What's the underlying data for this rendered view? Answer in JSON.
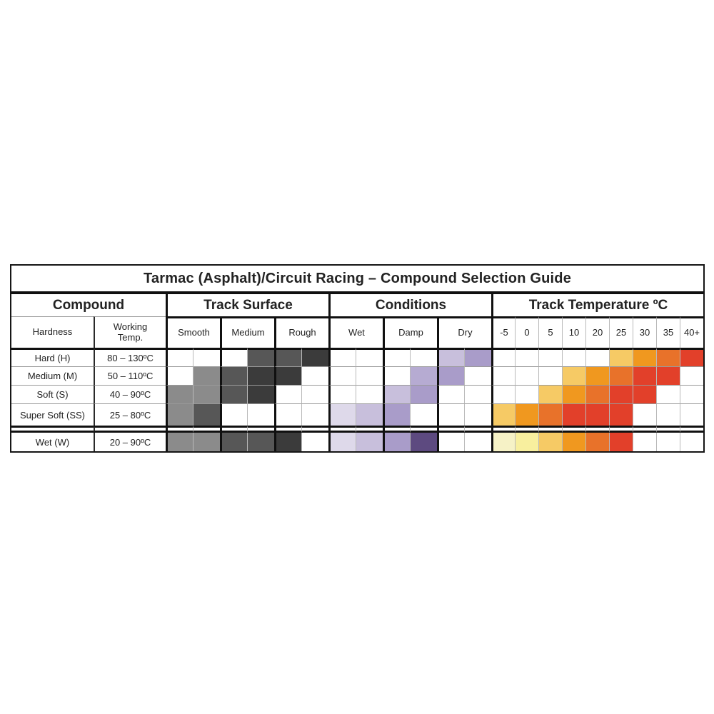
{
  "chart_data": {
    "type": "heatmap",
    "title": "Tarmac (Asphalt)/Circuit Racing – Compound Selection Guide",
    "sections": [
      "Compound",
      "Track Surface",
      "Conditions",
      "Track Temperature ºC"
    ],
    "subheaders": {
      "hardness": "Hardness",
      "working_temp": "Working Temp.",
      "surface": [
        "Smooth",
        "Medium",
        "Rough"
      ],
      "conditions": [
        "Wet",
        "Damp",
        "Dry"
      ],
      "temperatures": [
        "-5",
        "0",
        "5",
        "10",
        "20",
        "25",
        "30",
        "35",
        "40+"
      ]
    },
    "palette": {
      "g1": "#8b8b8b",
      "g2": "#575757",
      "g3": "#3b3b3b",
      "p1": "#ded9ea",
      "p2": "#c8bfdc",
      "p2b": "#b6abd2",
      "p3": "#a99cc9",
      "p4": "#5d4a80",
      "o1": "#f6f2c6",
      "o2": "#f8ef9e",
      "o3": "#f6ca65",
      "o4": "#f0981f",
      "o5": "#e8722a",
      "o6": "#e2402a",
      "-": "#ffffff"
    },
    "rows": [
      {
        "compound": "Hard (H)",
        "working_temp": "80 – 130ºC",
        "surface": [
          "-",
          "-",
          "-",
          "g2",
          "g2",
          "g3"
        ],
        "conditions": [
          "-",
          "-",
          "-",
          "-",
          "p2",
          "p3"
        ],
        "temperature": [
          "-",
          "-",
          "-",
          "-",
          "-",
          "o3",
          "o4",
          "o5",
          "o6"
        ]
      },
      {
        "compound": "Medium (M)",
        "working_temp": "50 – 110ºC",
        "surface": [
          "-",
          "g1",
          "g2",
          "g3",
          "g3",
          "-"
        ],
        "conditions": [
          "-",
          "-",
          "-",
          "p2b",
          "p3",
          "-"
        ],
        "temperature": [
          "-",
          "-",
          "-",
          "o3",
          "o4",
          "o5",
          "o6",
          "o6",
          "-"
        ]
      },
      {
        "compound": "Soft (S)",
        "working_temp": "40 – 90ºC",
        "surface": [
          "g1",
          "g1",
          "g2",
          "g3",
          "-",
          "-"
        ],
        "conditions": [
          "-",
          "-",
          "p2",
          "p3",
          "-",
          "-"
        ],
        "temperature": [
          "-",
          "-",
          "o3",
          "o4",
          "o5",
          "o6",
          "o6",
          "-",
          "-"
        ]
      },
      {
        "compound": "Super Soft (SS)",
        "working_temp": "25 – 80ºC",
        "surface": [
          "g1",
          "g2",
          "-",
          "-",
          "-",
          "-"
        ],
        "conditions": [
          "p1",
          "p2",
          "p3",
          "-",
          "-",
          "-"
        ],
        "temperature": [
          "o3",
          "o4",
          "o5",
          "o6",
          "o6",
          "o6",
          "-",
          "-",
          "-"
        ]
      }
    ],
    "wet_row": {
      "compound": "Wet (W)",
      "working_temp": "20 – 90ºC",
      "surface": [
        "g1",
        "g1",
        "g2",
        "g2",
        "g3",
        "-"
      ],
      "conditions": [
        "p1",
        "p2",
        "p3",
        "p4",
        "-",
        "-"
      ],
      "temperature": [
        "o1",
        "o2",
        "o3",
        "o4",
        "o5",
        "o6",
        "-",
        "-",
        "-"
      ]
    }
  }
}
